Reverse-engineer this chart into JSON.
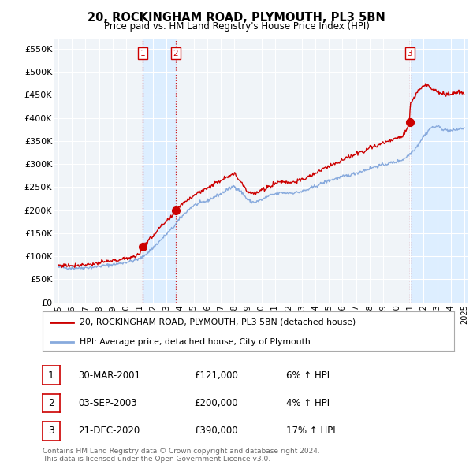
{
  "title": "20, ROCKINGHAM ROAD, PLYMOUTH, PL3 5BN",
  "subtitle": "Price paid vs. HM Land Registry's House Price Index (HPI)",
  "ylabel_ticks": [
    "£0",
    "£50K",
    "£100K",
    "£150K",
    "£200K",
    "£250K",
    "£300K",
    "£350K",
    "£400K",
    "£450K",
    "£500K",
    "£550K"
  ],
  "ytick_values": [
    0,
    50000,
    100000,
    150000,
    200000,
    250000,
    300000,
    350000,
    400000,
    450000,
    500000,
    550000
  ],
  "ylim": [
    0,
    570000
  ],
  "xlim_start": 1994.7,
  "xlim_end": 2025.3,
  "transaction_dates": [
    2001.24,
    2003.67,
    2020.98
  ],
  "transaction_prices": [
    121000,
    200000,
    390000
  ],
  "transaction_labels": [
    "1",
    "2",
    "3"
  ],
  "vline_color": "#cc0000",
  "shade_color": "#ddeeff",
  "hpi_color": "#88aadd",
  "price_color": "#cc0000",
  "dot_color": "#cc0000",
  "legend_label_price": "20, ROCKINGHAM ROAD, PLYMOUTH, PL3 5BN (detached house)",
  "legend_label_hpi": "HPI: Average price, detached house, City of Plymouth",
  "table_rows": [
    {
      "num": "1",
      "date": "30-MAR-2001",
      "price": "£121,000",
      "change": "6% ↑ HPI"
    },
    {
      "num": "2",
      "date": "03-SEP-2003",
      "price": "£200,000",
      "change": "4% ↑ HPI"
    },
    {
      "num": "3",
      "date": "21-DEC-2020",
      "price": "£390,000",
      "change": "17% ↑ HPI"
    }
  ],
  "footer": "Contains HM Land Registry data © Crown copyright and database right 2024.\nThis data is licensed under the Open Government Licence v3.0.",
  "background_color": "#ffffff",
  "plot_bg_color": "#f0f4f8",
  "grid_color": "#ffffff",
  "hpi_anchors_x": [
    1995.0,
    1995.5,
    1996.0,
    1996.5,
    1997.0,
    1997.5,
    1998.0,
    1998.5,
    1999.0,
    1999.5,
    2000.0,
    2000.5,
    2001.0,
    2001.5,
    2002.0,
    2002.5,
    2003.0,
    2003.5,
    2004.0,
    2004.5,
    2005.0,
    2005.5,
    2006.0,
    2006.5,
    2007.0,
    2007.5,
    2008.0,
    2008.5,
    2009.0,
    2009.3,
    2009.5,
    2010.0,
    2010.5,
    2011.0,
    2011.5,
    2012.0,
    2012.5,
    2013.0,
    2013.5,
    2014.0,
    2014.5,
    2015.0,
    2015.5,
    2016.0,
    2016.5,
    2017.0,
    2017.5,
    2018.0,
    2018.5,
    2019.0,
    2019.5,
    2020.0,
    2020.5,
    2021.0,
    2021.5,
    2022.0,
    2022.5,
    2023.0,
    2023.5,
    2024.0,
    2024.5,
    2025.0
  ],
  "hpi_anchors_y": [
    76000,
    75000,
    74000,
    74500,
    75000,
    76000,
    78000,
    80000,
    82000,
    84000,
    87000,
    90000,
    94000,
    105000,
    118000,
    133000,
    148000,
    163000,
    182000,
    198000,
    210000,
    215000,
    220000,
    228000,
    235000,
    245000,
    252000,
    240000,
    222000,
    218000,
    217000,
    222000,
    230000,
    235000,
    238000,
    237000,
    238000,
    240000,
    245000,
    252000,
    258000,
    264000,
    268000,
    272000,
    276000,
    280000,
    285000,
    290000,
    295000,
    298000,
    302000,
    305000,
    310000,
    322000,
    338000,
    360000,
    378000,
    382000,
    375000,
    372000,
    375000,
    378000
  ],
  "price_anchors_x": [
    1995.0,
    1995.5,
    1996.0,
    1996.5,
    1997.0,
    1997.5,
    1998.0,
    1998.5,
    1999.0,
    1999.5,
    2000.0,
    2000.5,
    2001.0,
    2001.24,
    2001.5,
    2002.0,
    2002.5,
    2003.0,
    2003.5,
    2003.67,
    2004.0,
    2004.5,
    2005.0,
    2005.5,
    2006.0,
    2006.5,
    2007.0,
    2007.5,
    2008.0,
    2008.5,
    2009.0,
    2009.3,
    2009.5,
    2010.0,
    2010.5,
    2011.0,
    2011.5,
    2012.0,
    2012.5,
    2013.0,
    2013.5,
    2014.0,
    2014.5,
    2015.0,
    2015.5,
    2016.0,
    2016.5,
    2017.0,
    2017.5,
    2018.0,
    2018.5,
    2019.0,
    2019.5,
    2020.0,
    2020.5,
    2020.98,
    2021.0,
    2021.5,
    2022.0,
    2022.3,
    2022.5,
    2023.0,
    2023.5,
    2024.0,
    2024.5,
    2025.0
  ],
  "price_anchors_y": [
    80000,
    80000,
    80000,
    81000,
    82000,
    83000,
    85000,
    88000,
    90000,
    92000,
    95000,
    99000,
    104000,
    121000,
    128000,
    145000,
    162000,
    175000,
    188000,
    200000,
    210000,
    222000,
    232000,
    240000,
    248000,
    256000,
    265000,
    274000,
    278000,
    262000,
    240000,
    237000,
    235000,
    242000,
    250000,
    258000,
    262000,
    260000,
    262000,
    265000,
    272000,
    280000,
    288000,
    295000,
    302000,
    308000,
    315000,
    322000,
    328000,
    335000,
    340000,
    345000,
    350000,
    355000,
    362000,
    390000,
    430000,
    455000,
    470000,
    472000,
    465000,
    458000,
    450000,
    452000,
    455000,
    452000
  ]
}
